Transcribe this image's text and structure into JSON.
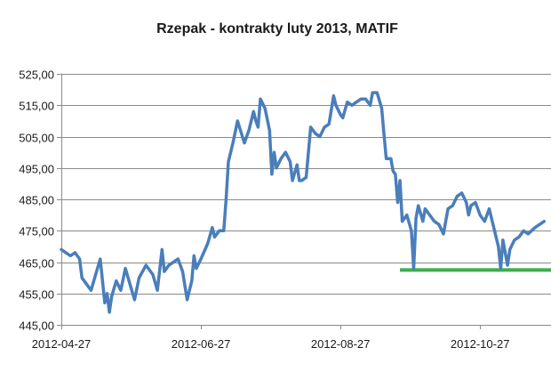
{
  "chart_data": {
    "type": "line",
    "title": "Rzepak - kontrakty luty 2013, MATIF",
    "xlabel": "",
    "ylabel": "",
    "ylim": [
      445,
      525
    ],
    "yticks": [
      "445,00",
      "455,00",
      "465,00",
      "475,00",
      "485,00",
      "495,00",
      "505,00",
      "515,00",
      "525,00"
    ],
    "ytick_values": [
      445,
      455,
      465,
      475,
      485,
      495,
      505,
      515,
      525
    ],
    "xlim": [
      "2012-04-27",
      "2012-11-27"
    ],
    "xticks": [
      "2012-04-27",
      "2012-06-27",
      "2012-08-27",
      "2012-10-27"
    ],
    "grid": "horizontal",
    "legend": "none",
    "series": [
      {
        "color": "#4a7ebb",
        "points": [
          [
            "2012-04-27",
            469
          ],
          [
            "2012-04-29",
            468
          ],
          [
            "2012-05-01",
            467
          ],
          [
            "2012-05-03",
            468
          ],
          [
            "2012-05-05",
            466
          ],
          [
            "2012-05-06",
            460
          ],
          [
            "2012-05-08",
            458
          ],
          [
            "2012-05-10",
            456
          ],
          [
            "2012-05-12",
            461
          ],
          [
            "2012-05-14",
            466
          ],
          [
            "2012-05-16",
            452
          ],
          [
            "2012-05-17",
            455
          ],
          [
            "2012-05-18",
            449
          ],
          [
            "2012-05-19",
            454
          ],
          [
            "2012-05-21",
            459
          ],
          [
            "2012-05-23",
            456
          ],
          [
            "2012-05-25",
            463
          ],
          [
            "2012-05-27",
            458
          ],
          [
            "2012-05-29",
            453
          ],
          [
            "2012-05-31",
            460
          ],
          [
            "2012-06-03",
            464
          ],
          [
            "2012-06-06",
            461
          ],
          [
            "2012-06-08",
            456
          ],
          [
            "2012-06-10",
            469
          ],
          [
            "2012-06-11",
            462
          ],
          [
            "2012-06-13",
            464
          ],
          [
            "2012-06-15",
            465
          ],
          [
            "2012-06-17",
            466
          ],
          [
            "2012-06-19",
            462
          ],
          [
            "2012-06-21",
            453
          ],
          [
            "2012-06-23",
            459
          ],
          [
            "2012-06-24",
            467
          ],
          [
            "2012-06-25",
            463
          ],
          [
            "2012-06-27",
            466
          ],
          [
            "2012-06-30",
            471
          ],
          [
            "2012-07-02",
            476
          ],
          [
            "2012-07-03",
            473
          ],
          [
            "2012-07-05",
            475
          ],
          [
            "2012-07-07",
            475
          ],
          [
            "2012-07-08",
            485
          ],
          [
            "2012-07-09",
            497
          ],
          [
            "2012-07-11",
            503
          ],
          [
            "2012-07-13",
            510
          ],
          [
            "2012-07-16",
            503
          ],
          [
            "2012-07-18",
            507
          ],
          [
            "2012-07-20",
            513
          ],
          [
            "2012-07-21",
            510
          ],
          [
            "2012-07-22",
            508
          ],
          [
            "2012-07-23",
            517
          ],
          [
            "2012-07-25",
            514
          ],
          [
            "2012-07-27",
            507
          ],
          [
            "2012-07-28",
            493
          ],
          [
            "2012-07-29",
            500
          ],
          [
            "2012-07-30",
            495
          ],
          [
            "2012-08-01",
            498
          ],
          [
            "2012-08-03",
            500
          ],
          [
            "2012-08-05",
            497
          ],
          [
            "2012-08-06",
            491
          ],
          [
            "2012-08-08",
            496
          ],
          [
            "2012-08-09",
            491
          ],
          [
            "2012-08-10",
            491
          ],
          [
            "2012-08-12",
            492
          ],
          [
            "2012-08-14",
            508
          ],
          [
            "2012-08-16",
            506
          ],
          [
            "2012-08-18",
            505
          ],
          [
            "2012-08-20",
            508
          ],
          [
            "2012-08-22",
            509
          ],
          [
            "2012-08-24",
            518
          ],
          [
            "2012-08-25",
            515
          ],
          [
            "2012-08-27",
            512
          ],
          [
            "2012-08-28",
            511
          ],
          [
            "2012-08-30",
            516
          ],
          [
            "2012-09-01",
            515
          ],
          [
            "2012-09-03",
            516
          ],
          [
            "2012-09-05",
            517
          ],
          [
            "2012-09-07",
            517
          ],
          [
            "2012-09-09",
            515
          ],
          [
            "2012-09-10",
            519
          ],
          [
            "2012-09-12",
            519
          ],
          [
            "2012-09-14",
            514
          ],
          [
            "2012-09-15",
            506
          ],
          [
            "2012-09-16",
            498
          ],
          [
            "2012-09-18",
            498
          ],
          [
            "2012-09-19",
            494
          ],
          [
            "2012-09-20",
            493
          ],
          [
            "2012-09-21",
            484
          ],
          [
            "2012-09-22",
            491
          ],
          [
            "2012-09-23",
            478
          ],
          [
            "2012-09-25",
            480
          ],
          [
            "2012-09-27",
            475
          ],
          [
            "2012-09-28",
            463
          ],
          [
            "2012-09-29",
            479
          ],
          [
            "2012-09-30",
            483
          ],
          [
            "2012-10-02",
            478
          ],
          [
            "2012-10-03",
            482
          ],
          [
            "2012-10-05",
            480
          ],
          [
            "2012-10-07",
            478
          ],
          [
            "2012-10-09",
            477
          ],
          [
            "2012-10-11",
            474
          ],
          [
            "2012-10-13",
            482
          ],
          [
            "2012-10-15",
            483
          ],
          [
            "2012-10-17",
            486
          ],
          [
            "2012-10-19",
            487
          ],
          [
            "2012-10-21",
            484
          ],
          [
            "2012-10-22",
            480
          ],
          [
            "2012-10-23",
            483
          ],
          [
            "2012-10-25",
            484
          ],
          [
            "2012-10-27",
            480
          ],
          [
            "2012-10-29",
            478
          ],
          [
            "2012-10-31",
            482
          ],
          [
            "2012-11-02",
            476
          ],
          [
            "2012-11-04",
            470
          ],
          [
            "2012-11-05",
            463
          ],
          [
            "2012-11-06",
            472
          ],
          [
            "2012-11-07",
            468
          ],
          [
            "2012-11-08",
            464
          ],
          [
            "2012-11-09",
            469
          ],
          [
            "2012-11-11",
            472
          ],
          [
            "2012-11-13",
            473
          ],
          [
            "2012-11-15",
            475
          ],
          [
            "2012-11-17",
            474
          ],
          [
            "2012-11-20",
            476
          ],
          [
            "2012-11-24",
            478
          ]
        ]
      }
    ],
    "annotations": [
      {
        "type": "horizontal-line",
        "y": 462.5,
        "x_from": "2012-09-22",
        "x_to": "2012-11-27",
        "color": "#3cae4a"
      }
    ]
  }
}
